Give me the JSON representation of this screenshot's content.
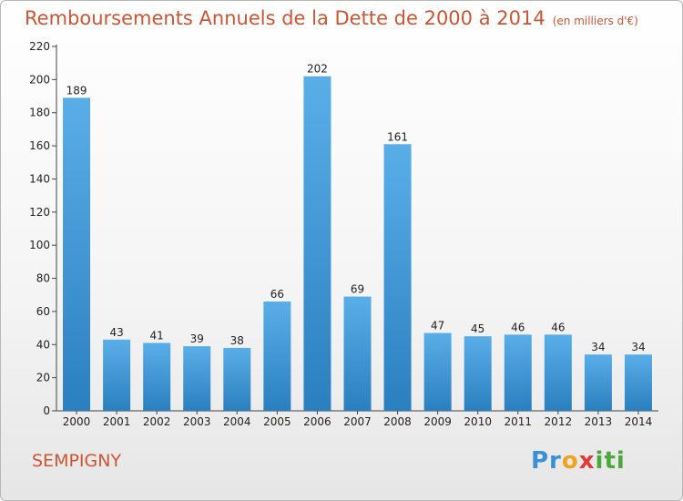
{
  "title": "Remboursements Annuels de la Dette de 2000 à 2014",
  "unit": "(en milliers d'€)",
  "commune": "SEMPIGNY",
  "logo": "Proxiti",
  "colors": {
    "bar_light": "#5aaee8",
    "bar_dark": "#2a7fbf",
    "title": "#cc5533"
  },
  "chart_data": {
    "type": "bar",
    "categories": [
      "2000",
      "2001",
      "2002",
      "2003",
      "2004",
      "2005",
      "2006",
      "2007",
      "2008",
      "2009",
      "2010",
      "2011",
      "2012",
      "2013",
      "2014"
    ],
    "values": [
      189,
      43,
      41,
      39,
      38,
      66,
      202,
      69,
      161,
      47,
      45,
      46,
      46,
      34,
      34
    ],
    "ylim": [
      0,
      220
    ],
    "yticks": [
      0,
      20,
      40,
      60,
      80,
      100,
      120,
      140,
      160,
      180,
      200,
      220
    ],
    "grid": false,
    "legend": "none"
  }
}
